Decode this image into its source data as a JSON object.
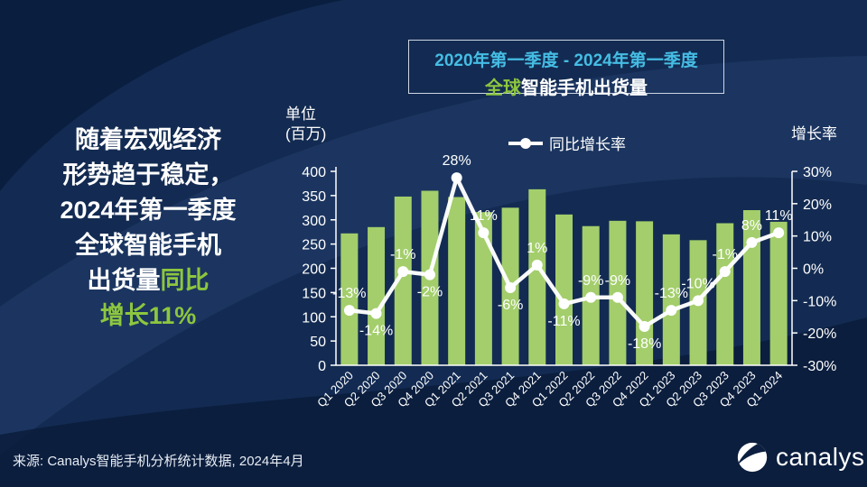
{
  "headline": {
    "line1": "随着宏观经济",
    "line2": "形势趋于稳定，",
    "line3": "2024年第一季度",
    "line4": "全球智能手机",
    "line5_white": "出货量",
    "line5_green": "同比",
    "line6_green": "增长11%"
  },
  "title_box": {
    "line1": "2020年第一季度 - 2024年第一季度",
    "line2_green": "全球",
    "line2_white": "智能手机出货量"
  },
  "axis_titles": {
    "left_line1": "单位",
    "left_line2": "(百万)",
    "right": "增长率"
  },
  "legend": {
    "label": "同比增长率"
  },
  "source_text": "来源: Canalys智能手机分析统计数据, 2024年4月",
  "logo": {
    "text": "canalys",
    "icon": "canalys-logo-icon"
  },
  "colors": {
    "bar": "#a3ce6b",
    "line": "#ffffff",
    "axis": "#ffffff",
    "accent_green": "#8dc63f",
    "accent_cyan": "#45bde4",
    "background": "#132b52"
  },
  "chart_data": {
    "type": "bar",
    "title": "全球智能手机出货量 2020年第一季度 - 2024年第一季度",
    "categories": [
      "Q1 2020",
      "Q2 2020",
      "Q3 2020",
      "Q4 2020",
      "Q1 2021",
      "Q2 2021",
      "Q3 2021",
      "Q4 2021",
      "Q1 2022",
      "Q2 2022",
      "Q3 2022",
      "Q4 2022",
      "Q1 2023",
      "Q2 2023",
      "Q3 2023",
      "Q4 2023",
      "Q1 2024"
    ],
    "series": [
      {
        "name": "出货量(百万)",
        "type": "bar",
        "axis": "left",
        "values": [
          272,
          285,
          348,
          360,
          347,
          316,
          325,
          363,
          311,
          287,
          298,
          297,
          270,
          258,
          293,
          320,
          296
        ]
      },
      {
        "name": "同比增长率",
        "type": "line",
        "axis": "right",
        "values": [
          -13,
          -14,
          -1,
          -2,
          28,
          11,
          -6,
          1,
          -11,
          -9,
          -9,
          -18,
          -13,
          -10,
          -1,
          8,
          11
        ],
        "labels": [
          "-13%",
          "-14%",
          "-1%",
          "-2%",
          "28%",
          "11%",
          "-6%",
          "1%",
          "-11%",
          "-9%",
          "-9%",
          "-18%",
          "-13%",
          "-10%",
          "-1%",
          "8%",
          "11%"
        ],
        "label_positions": [
          "above",
          "below",
          "above",
          "below",
          "above",
          "above",
          "below",
          "above",
          "below",
          "above",
          "above",
          "below",
          "above",
          "above",
          "above",
          "above",
          "above"
        ]
      }
    ],
    "left_axis": {
      "min": 0,
      "max": 400,
      "step": 50,
      "label": "单位(百万)"
    },
    "right_axis": {
      "min": -30,
      "max": 30,
      "step": 10,
      "suffix": "%",
      "label": "增长率"
    },
    "grid": false,
    "legend_position": "top"
  }
}
